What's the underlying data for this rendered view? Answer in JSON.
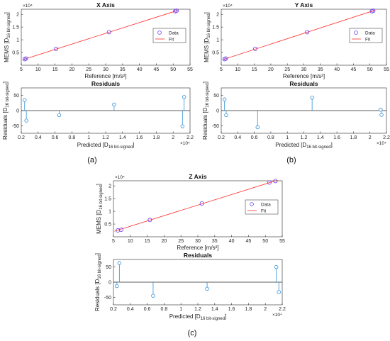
{
  "chart_data": [
    {
      "id": "x-fit",
      "type": "scatter",
      "title": "X Axis",
      "xlabel": "Reference [m/s²]",
      "ylabel": "MEMS [D₁₆ bit-signed]",
      "ylabel_main": "MEMS [D",
      "ylabel_sub": "16 bit-signed",
      "ylabel_end": "]",
      "xlim": [
        5,
        55
      ],
      "ylim": [
        0,
        2.2
      ],
      "xticks": [
        "5",
        "10",
        "15",
        "20",
        "25",
        "30",
        "35",
        "40",
        "45",
        "50",
        "55"
      ],
      "yticks": [
        "0.5",
        "1",
        "1.5",
        "2"
      ],
      "exponent": "×10⁴",
      "legend": {
        "position": "right",
        "data": "Data",
        "fit": "Fit"
      },
      "series": [
        {
          "name": "Data",
          "x": [
            6.0,
            6.4,
            15.3,
            31.0,
            50.6,
            51.0
          ],
          "y": [
            0.24,
            0.26,
            0.64,
            1.3,
            2.12,
            2.14
          ]
        },
        {
          "name": "Fit",
          "x": [
            5.5,
            51.5
          ],
          "y": [
            0.22,
            2.16
          ]
        }
      ]
    },
    {
      "id": "x-res",
      "type": "stem",
      "title": "Residuals",
      "xlabel": "Predicted [D₁₆ bit-signed]",
      "xlabel_main": "Predicted [D",
      "xlabel_sub": "16 bit-signed",
      "xlabel_end": "]",
      "ylabel": "Residuals [D₁₆ bit-signed]",
      "ylabel_main": "Residuals [D",
      "ylabel_sub": "16 bit-signed",
      "ylabel_end": "]",
      "xlim": [
        0.2,
        2.2
      ],
      "ylim": [
        -75,
        75
      ],
      "xticks": [
        "0.2",
        "0.4",
        "0.6",
        "0.8",
        "1",
        "1.2",
        "1.4",
        "1.6",
        "1.8",
        "2",
        "2.2"
      ],
      "yticks": [
        "-50",
        "0",
        "50"
      ],
      "exponent": "×10⁴",
      "series": [
        {
          "name": "Residuals",
          "x": [
            0.24,
            0.26,
            0.65,
            1.3,
            2.11,
            2.13
          ],
          "y": [
            35,
            -33,
            -15,
            20,
            -52,
            45
          ]
        }
      ]
    },
    {
      "id": "y-fit",
      "type": "scatter",
      "title": "Y Axis",
      "xlabel": "Reference [m/s²]",
      "ylabel": "MEMS [D₁₆ bit-signed]",
      "ylabel_main": "MEMS [D",
      "ylabel_sub": "16 bit-signed",
      "ylabel_end": "]",
      "xlim": [
        5,
        55
      ],
      "ylim": [
        0,
        2.2
      ],
      "xticks": [
        "5",
        "10",
        "15",
        "20",
        "25",
        "30",
        "35",
        "40",
        "45",
        "50",
        "55"
      ],
      "yticks": [
        "0.5",
        "1",
        "1.5",
        "2"
      ],
      "exponent": "×10⁴",
      "legend": {
        "position": "right",
        "data": "Data",
        "fit": "Fit"
      },
      "series": [
        {
          "name": "Data",
          "x": [
            6.0,
            6.4,
            15.3,
            31.0,
            50.6,
            51.0
          ],
          "y": [
            0.24,
            0.26,
            0.64,
            1.3,
            2.12,
            2.14
          ]
        },
        {
          "name": "Fit",
          "x": [
            5.5,
            51.5
          ],
          "y": [
            0.22,
            2.16
          ]
        }
      ]
    },
    {
      "id": "y-res",
      "type": "stem",
      "title": "Residuals",
      "xlabel": "Predicted [D₁₆ bit-signed]",
      "xlabel_main": "Predicted [D",
      "xlabel_sub": "16 bit-signed",
      "xlabel_end": "]",
      "ylabel": "Residuals [D₁₆ bit-signed]",
      "ylabel_main": "Residuals [D",
      "ylabel_sub": "16 bit-signed",
      "ylabel_end": "]",
      "xlim": [
        0.2,
        2.2
      ],
      "ylim": [
        -75,
        75
      ],
      "xticks": [
        "0.2",
        "0.4",
        "0.6",
        "0.8",
        "1",
        "1.2",
        "1.4",
        "1.6",
        "1.8",
        "2",
        "2.2"
      ],
      "yticks": [
        "-50",
        "0",
        "50"
      ],
      "exponent": "×10⁴",
      "series": [
        {
          "name": "Residuals",
          "x": [
            0.24,
            0.26,
            0.64,
            1.3,
            2.13,
            2.14
          ],
          "y": [
            37,
            -15,
            -55,
            43,
            3,
            -14
          ]
        }
      ]
    },
    {
      "id": "z-fit",
      "type": "scatter",
      "title": "Z Axis",
      "xlabel": "Reference [m/s²]",
      "ylabel": "MEMS [D₁₆ bit-signed]",
      "ylabel_main": "MEMS [D",
      "ylabel_sub": "16 bit-signed",
      "ylabel_end": "]",
      "xlim": [
        5,
        55
      ],
      "ylim": [
        0,
        2.2
      ],
      "xticks": [
        "5",
        "10",
        "15",
        "20",
        "25",
        "30",
        "35",
        "40",
        "45",
        "50",
        "55"
      ],
      "yticks": [
        "0.5",
        "1",
        "1.5",
        "2"
      ],
      "exponent": "×10⁴",
      "legend": {
        "position": "right",
        "data": "Data",
        "fit": "Fit"
      },
      "series": [
        {
          "name": "Data",
          "x": [
            6.3,
            7.3,
            15.8,
            31.2,
            51.2,
            53.0
          ],
          "y": [
            0.25,
            0.28,
            0.66,
            1.31,
            2.13,
            2.19
          ]
        },
        {
          "name": "Fit",
          "x": [
            5.3,
            53.5
          ],
          "y": [
            0.22,
            2.22
          ]
        }
      ]
    },
    {
      "id": "z-res",
      "type": "stem",
      "title": "Residuals",
      "xlabel": "Predicted [D₁₆ bit-signed]",
      "xlabel_main": "Predicted [D",
      "xlabel_sub": "16 bit-signed",
      "xlabel_end": "]",
      "ylabel": "Residuals [D₁₆ bit-signed]",
      "ylabel_main": "Residuals [D",
      "ylabel_sub": "16 bit-signed",
      "ylabel_end": "]",
      "xlim": [
        0.2,
        2.2
      ],
      "ylim": [
        -75,
        75
      ],
      "xticks": [
        "0.2",
        "0.4",
        "0.6",
        "0.8",
        "1",
        "1.2",
        "1.4",
        "1.6",
        "1.8",
        "2",
        "2.2"
      ],
      "yticks": [
        "-50",
        "0",
        "50"
      ],
      "exponent": "×10⁴",
      "series": [
        {
          "name": "Residuals",
          "x": [
            0.24,
            0.27,
            0.67,
            1.31,
            2.13,
            2.16
          ],
          "y": [
            -13,
            63,
            -45,
            -22,
            50,
            -33
          ]
        }
      ]
    }
  ],
  "captions": {
    "a": "(a)",
    "b": "(b)",
    "c": "(c)"
  },
  "colors": {
    "data": "#6a3df2",
    "fit": "#ff2a2a",
    "stem": "#2f8fd6",
    "axis": "#262626",
    "zero": "#262626"
  }
}
